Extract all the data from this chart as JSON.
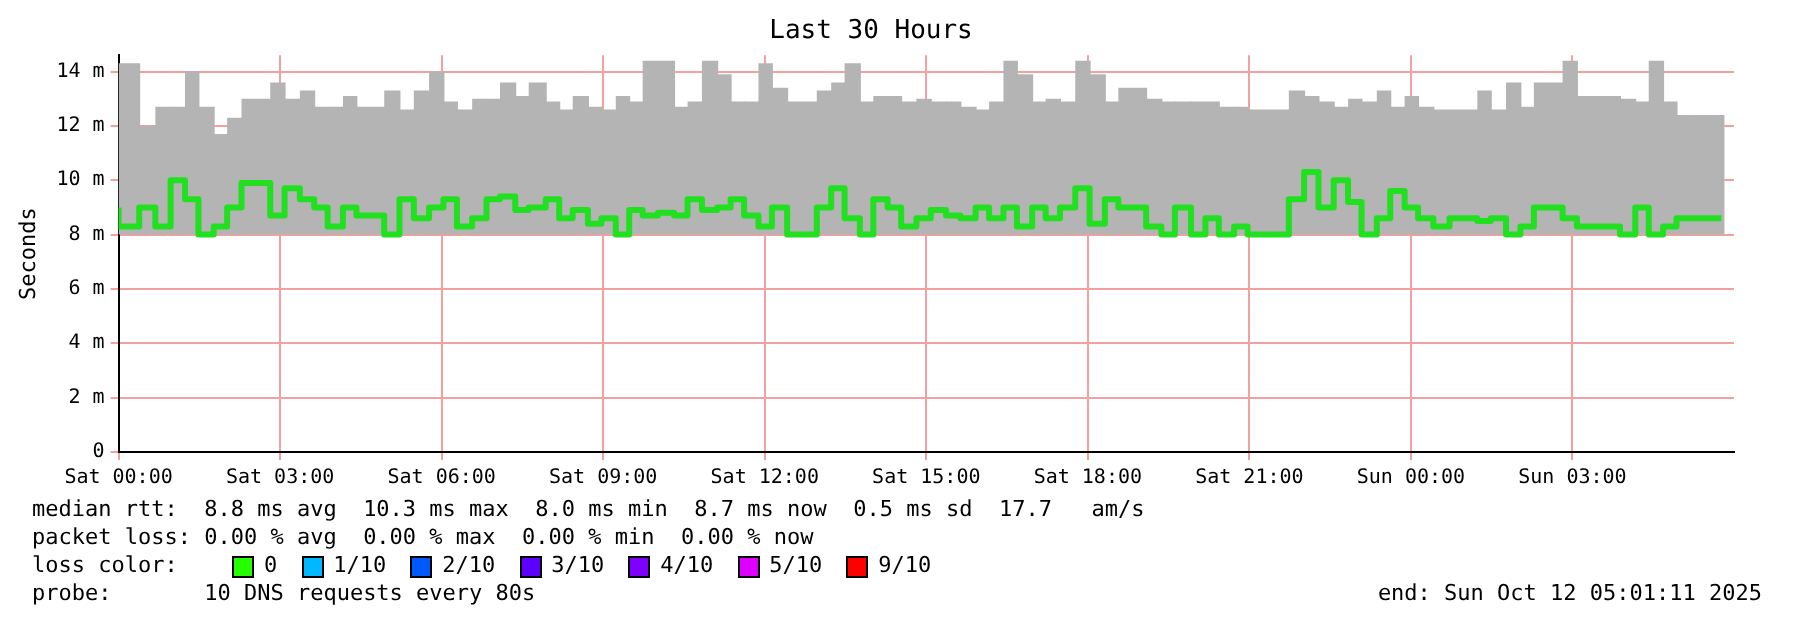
{
  "chart_data": {
    "type": "step",
    "title": "Last 30 Hours",
    "ylabel": "Seconds",
    "x": [
      "2025-10-11T00:00",
      "2025-10-11T00:23",
      "2025-10-11T00:41",
      "2025-10-11T00:58",
      "2025-10-11T01:14",
      "2025-10-11T01:29",
      "2025-10-11T01:46",
      "2025-10-11T02:01",
      "2025-10-11T02:17",
      "2025-10-11T02:49",
      "2025-10-11T03:05",
      "2025-10-11T03:22",
      "2025-10-11T03:38",
      "2025-10-11T03:53",
      "2025-10-11T04:10",
      "2025-10-11T04:25",
      "2025-10-11T04:56",
      "2025-10-11T05:13",
      "2025-10-11T05:29",
      "2025-10-11T05:46",
      "2025-10-11T06:02",
      "2025-10-11T06:17",
      "2025-10-11T06:34",
      "2025-10-11T06:50",
      "2025-10-11T07:05",
      "2025-10-11T07:22",
      "2025-10-11T07:37",
      "2025-10-11T07:56",
      "2025-10-11T08:11",
      "2025-10-11T08:26",
      "2025-10-11T08:43",
      "2025-10-11T08:58",
      "2025-10-11T09:14",
      "2025-10-11T09:29",
      "2025-10-11T09:44",
      "2025-10-11T10:01",
      "2025-10-11T10:19",
      "2025-10-11T10:34",
      "2025-10-11T10:50",
      "2025-10-11T11:07",
      "2025-10-11T11:22",
      "2025-10-11T11:37",
      "2025-10-11T11:53",
      "2025-10-11T12:08",
      "2025-10-11T12:25",
      "2025-10-11T12:58",
      "2025-10-11T13:14",
      "2025-10-11T13:29",
      "2025-10-11T13:46",
      "2025-10-11T14:01",
      "2025-10-11T14:17",
      "2025-10-11T14:32",
      "2025-10-11T14:49",
      "2025-10-11T15:05",
      "2025-10-11T15:22",
      "2025-10-11T15:38",
      "2025-10-11T15:55",
      "2025-10-11T16:10",
      "2025-10-11T16:26",
      "2025-10-11T16:41",
      "2025-10-11T16:58",
      "2025-10-11T17:13",
      "2025-10-11T17:29",
      "2025-10-11T17:46",
      "2025-10-11T18:02",
      "2025-10-11T18:19",
      "2025-10-11T18:34",
      "2025-10-11T19:05",
      "2025-10-11T19:22",
      "2025-10-11T19:37",
      "2025-10-11T19:55",
      "2025-10-11T20:11",
      "2025-10-11T20:26",
      "2025-10-11T20:43",
      "2025-10-11T20:58",
      "2025-10-11T21:44",
      "2025-10-11T22:01",
      "2025-10-11T22:17",
      "2025-10-11T22:34",
      "2025-10-11T22:50",
      "2025-10-11T23:05",
      "2025-10-11T23:22",
      "2025-10-11T23:37",
      "2025-10-11T23:53",
      "2025-10-12T00:08",
      "2025-10-12T00:25",
      "2025-10-12T00:43",
      "2025-10-12T01:14",
      "2025-10-12T01:29",
      "2025-10-12T01:46",
      "2025-10-12T02:02",
      "2025-10-12T02:17",
      "2025-10-12T02:49",
      "2025-10-12T03:05",
      "2025-10-12T03:53",
      "2025-10-12T04:10",
      "2025-10-12T04:25",
      "2025-10-12T04:41",
      "2025-10-12T04:56",
      "2025-10-12T05:13",
      "2025-10-12T05:46"
    ],
    "series": [
      {
        "color": "#20e020",
        "values": [
          9.0,
          8.3,
          9.0,
          8.3,
          10.0,
          9.3,
          8.0,
          8.3,
          9.0,
          9.9,
          8.7,
          9.7,
          9.3,
          9.0,
          8.3,
          9.0,
          8.7,
          8.0,
          9.3,
          8.6,
          9.0,
          9.3,
          8.3,
          8.6,
          9.3,
          9.4,
          8.9,
          9.0,
          9.3,
          8.6,
          8.9,
          8.4,
          8.6,
          8.0,
          8.9,
          8.7,
          8.8,
          8.7,
          9.3,
          8.9,
          9.0,
          9.3,
          8.7,
          8.3,
          9.0,
          8.0,
          9.0,
          9.7,
          8.6,
          8.0,
          9.3,
          9.0,
          8.3,
          8.6,
          8.9,
          8.7,
          8.6,
          9.0,
          8.6,
          9.0,
          8.3,
          9.0,
          8.6,
          9.0,
          9.7,
          8.4,
          9.3,
          9.0,
          8.3,
          8.0,
          9.0,
          8.0,
          8.6,
          8.0,
          8.3,
          8.0,
          9.3,
          10.3,
          9.0,
          10.0,
          9.2,
          8.0,
          8.6,
          9.6,
          9.0,
          8.6,
          8.3,
          8.6,
          8.5,
          8.6,
          8.0,
          8.3,
          9.0,
          8.6,
          8.3,
          8.0,
          9.0,
          8.0,
          8.3,
          8.6,
          8.6
        ],
        "lower": [
          8.0,
          8.0,
          8.0,
          8.0,
          8.0,
          8.0,
          8.0,
          8.0,
          8.0,
          8.0,
          8.0,
          8.0,
          8.0,
          8.0,
          8.0,
          8.0,
          8.0,
          8.0,
          8.0,
          8.0,
          8.0,
          8.0,
          8.0,
          8.0,
          8.0,
          8.0,
          8.0,
          8.0,
          8.0,
          8.0,
          8.0,
          8.0,
          8.0,
          8.0,
          8.0,
          8.0,
          8.0,
          8.0,
          8.0,
          8.0,
          8.0,
          8.0,
          8.0,
          8.0,
          8.0,
          8.0,
          8.0,
          8.0,
          8.0,
          8.0,
          8.0,
          8.0,
          8.0,
          8.0,
          8.0,
          8.0,
          8.0,
          8.0,
          8.0,
          8.0,
          8.0,
          8.0,
          8.0,
          8.0,
          8.0,
          8.0,
          8.0,
          8.0,
          8.0,
          8.0,
          8.0,
          8.0,
          8.0,
          8.0,
          8.0,
          8.0,
          8.0,
          8.0,
          8.0,
          8.0,
          8.0,
          8.0,
          8.0,
          8.0,
          8.0,
          8.0,
          8.0,
          8.0,
          8.0,
          8.0,
          8.0,
          8.0,
          8.0,
          8.0,
          8.0,
          8.0,
          8.0,
          8.0,
          8.0,
          8.0,
          8.0
        ],
        "upper": [
          14.3,
          12.0,
          12.7,
          12.7,
          14.0,
          12.7,
          11.7,
          12.3,
          13.0,
          13.6,
          13.0,
          13.3,
          12.7,
          12.7,
          13.1,
          12.7,
          13.3,
          12.6,
          13.3,
          14.0,
          12.9,
          12.6,
          13.0,
          13.0,
          13.6,
          13.1,
          13.6,
          12.9,
          12.6,
          13.1,
          12.7,
          12.6,
          13.1,
          12.9,
          14.4,
          14.4,
          12.7,
          12.9,
          14.4,
          13.9,
          12.9,
          12.9,
          14.3,
          13.4,
          12.9,
          13.3,
          13.6,
          14.3,
          12.9,
          13.1,
          13.1,
          12.9,
          13.0,
          12.9,
          12.9,
          12.7,
          12.6,
          12.9,
          14.4,
          13.9,
          12.9,
          13.0,
          12.9,
          14.4,
          13.9,
          12.9,
          13.4,
          13.0,
          12.9,
          12.9,
          12.9,
          12.9,
          12.7,
          12.7,
          12.6,
          13.3,
          13.1,
          12.9,
          12.7,
          13.0,
          12.9,
          13.3,
          12.7,
          13.1,
          12.7,
          12.6,
          12.6,
          13.3,
          12.6,
          13.6,
          12.7,
          13.6,
          14.4,
          13.1,
          13.0,
          12.9,
          14.4,
          12.9,
          12.4,
          12.4,
          12.4
        ]
      }
    ],
    "xlim": [
      "2025-10-11T00:00",
      "2025-10-12T06:00"
    ],
    "xticks": [
      {
        "value": "2025-10-11T00:00",
        "label": "Sat 00:00"
      },
      {
        "value": "2025-10-11T03:00",
        "label": "Sat 03:00"
      },
      {
        "value": "2025-10-11T06:00",
        "label": "Sat 06:00"
      },
      {
        "value": "2025-10-11T09:00",
        "label": "Sat 09:00"
      },
      {
        "value": "2025-10-11T12:00",
        "label": "Sat 12:00"
      },
      {
        "value": "2025-10-11T15:00",
        "label": "Sat 15:00"
      },
      {
        "value": "2025-10-11T18:00",
        "label": "Sat 18:00"
      },
      {
        "value": "2025-10-11T21:00",
        "label": "Sat 21:00"
      },
      {
        "value": "2025-10-12T00:00",
        "label": "Sun 00:00"
      },
      {
        "value": "2025-10-12T03:00",
        "label": "Sun 03:00"
      }
    ],
    "ylim": [
      0,
      14.6
    ],
    "yticks": [
      0,
      {
        "value": 2,
        "label": "2 m"
      },
      {
        "value": 4,
        "label": "4 m"
      },
      {
        "value": 6,
        "label": "6 m"
      },
      {
        "value": 8,
        "label": "8 m"
      },
      {
        "value": 10,
        "label": "10 m"
      },
      {
        "value": 12,
        "label": "12 m"
      },
      {
        "value": 14,
        "label": "14 m"
      }
    ],
    "grid": true,
    "legend": false,
    "annotations": [
      "median rtt:  8.8 ms avg  10.3 ms max  8.0 ms min  8.7 ms now  0.5 ms sd  17.7   am/s",
      "packet loss: 0.00 % avg  0.00 % max  0.00 % min  0.00 % now",
      "loss color:",
      "0",
      "1/10",
      "2/10",
      "3/10",
      "4/10",
      "5/10",
      "9/10",
      "probe:       10 DNS requests every 80s",
      "end: Sun Oct 12 05:01:11 2025"
    ]
  }
}
